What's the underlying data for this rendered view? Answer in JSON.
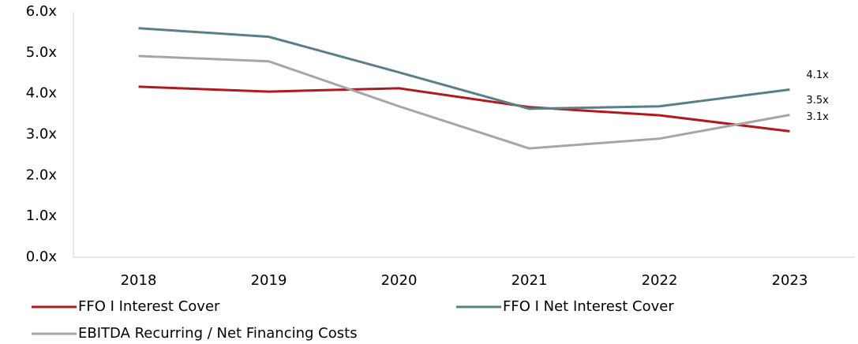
{
  "chart_data": {
    "type": "line",
    "categories": [
      "2018",
      "2019",
      "2020",
      "2021",
      "2022",
      "2023"
    ],
    "series": [
      {
        "name": "FFO I Interest Cover",
        "color": "#b2191f",
        "values": [
          4.17,
          4.05,
          4.13,
          3.67,
          3.47,
          3.08
        ],
        "value_labels": [
          null,
          null,
          null,
          null,
          null,
          "3.1x"
        ]
      },
      {
        "name": "FFO I Net Interest Cover",
        "color": "#5a7f86",
        "values": [
          5.6,
          5.39,
          4.52,
          3.63,
          3.69,
          4.1
        ],
        "value_labels": [
          null,
          null,
          null,
          null,
          null,
          "4.1x"
        ]
      },
      {
        "name": "EBITDA Recurring / Net Financing Costs",
        "color": "#a6a6a6",
        "values": [
          4.92,
          4.79,
          3.69,
          2.66,
          2.9,
          3.48
        ],
        "value_labels": [
          null,
          null,
          null,
          null,
          null,
          "3.5x"
        ]
      }
    ],
    "ylim": [
      0,
      6
    ],
    "yticks": [
      {
        "value": 0,
        "label": "0.0x"
      },
      {
        "value": 1,
        "label": "1.0x"
      },
      {
        "value": 2,
        "label": "2.0x"
      },
      {
        "value": 3,
        "label": "3.0x"
      },
      {
        "value": 4,
        "label": "4.0x"
      },
      {
        "value": 5,
        "label": "5.0x"
      },
      {
        "value": 6,
        "label": "6.0x"
      }
    ],
    "grid": false
  }
}
